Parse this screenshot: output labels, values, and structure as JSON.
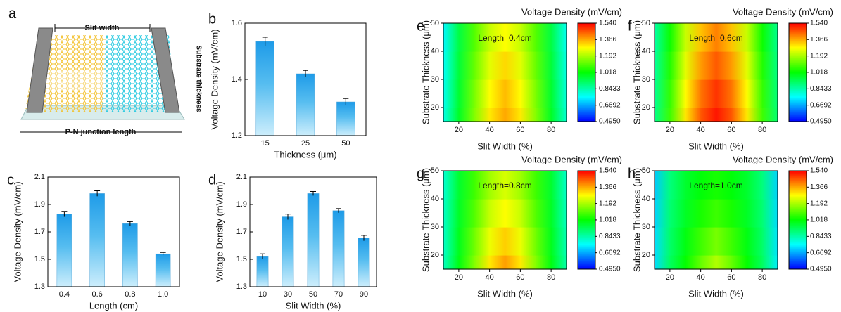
{
  "diagram": {
    "panel": "a",
    "slit_label": "Slit width",
    "thickness_label": "Substrate thickness",
    "length_label": "P-N junction length"
  },
  "chart_data": [
    {
      "type": "bar",
      "panel": "b",
      "xlabel": "Thickness (μm)",
      "ylabel": "Voltage Density (mV/cm)",
      "categories": [
        "15",
        "25",
        "50"
      ],
      "values": [
        1.535,
        1.42,
        1.32
      ],
      "errors": [
        0.015,
        0.012,
        0.012
      ],
      "color": "#1e9be8",
      "ylim": [
        1.2,
        1.6
      ],
      "yticks": [
        1.2,
        1.4,
        1.6
      ]
    },
    {
      "type": "bar",
      "panel": "c",
      "xlabel": "Length (cm)",
      "ylabel": "Voltage Density (mV/cm)",
      "categories": [
        "0.4",
        "0.6",
        "0.8",
        "1.0"
      ],
      "values": [
        1.83,
        1.98,
        1.76,
        1.54
      ],
      "errors": [
        0.02,
        0.02,
        0.015,
        0.01
      ],
      "color": "#1e9be8",
      "ylim": [
        1.3,
        2.1
      ],
      "yticks": [
        1.3,
        1.5,
        1.7,
        1.9,
        2.1
      ]
    },
    {
      "type": "bar",
      "panel": "d",
      "xlabel": "Slit Width (%)",
      "ylabel": "Voltage Density (mV/cm)",
      "categories": [
        "10",
        "30",
        "50",
        "70",
        "90"
      ],
      "values": [
        1.52,
        1.81,
        1.98,
        1.855,
        1.655
      ],
      "errors": [
        0.02,
        0.02,
        0.015,
        0.015,
        0.02
      ],
      "color": "#1e9be8",
      "ylim": [
        1.3,
        2.1
      ],
      "yticks": [
        1.3,
        1.5,
        1.7,
        1.9,
        2.1
      ]
    },
    {
      "type": "contour",
      "panel": "e",
      "annotation": "Length=0.4cm",
      "xlabel": "Slit Width (%)",
      "ylabel": "Substrate Thickness (μm)",
      "colorbar_label": "Voltage Density (mV/cm)",
      "x": [
        10,
        20,
        30,
        40,
        50,
        60,
        70,
        80,
        90
      ],
      "y": [
        15,
        25,
        35,
        45
      ],
      "z": [
        [
          0.78,
          0.98,
          1.15,
          1.3,
          1.37,
          1.3,
          1.15,
          0.98,
          0.8
        ],
        [
          0.77,
          0.97,
          1.14,
          1.28,
          1.35,
          1.28,
          1.14,
          0.97,
          0.79
        ],
        [
          0.76,
          0.96,
          1.12,
          1.25,
          1.32,
          1.25,
          1.12,
          0.96,
          0.78
        ],
        [
          0.75,
          0.95,
          1.1,
          1.22,
          1.28,
          1.22,
          1.1,
          0.95,
          0.77
        ]
      ],
      "xlim": [
        10,
        90
      ],
      "ylim": [
        15,
        50
      ],
      "xticks": [
        20,
        40,
        60,
        80
      ],
      "yticks": [
        20,
        30,
        40,
        50
      ],
      "zlim": [
        0.495,
        1.54
      ],
      "zticks": [
        {
          "value": 0.495,
          "label": "0.4950"
        },
        0.6692,
        0.8433,
        1.018,
        1.192,
        1.366,
        {
          "value": 1.54,
          "label": "1.540"
        }
      ],
      "colormap": [
        "#0000ff",
        "#00ffff",
        "#00ff00",
        "#ffff00",
        "#ff0000"
      ]
    },
    {
      "type": "contour",
      "panel": "f",
      "annotation": "Length=0.6cm",
      "xlabel": "Slit Width (%)",
      "ylabel": "Substrate Thickness (μm)",
      "colorbar_label": "Voltage Density (mV/cm)",
      "x": [
        10,
        20,
        30,
        40,
        50,
        60,
        70,
        80,
        90
      ],
      "y": [
        15,
        25,
        35,
        45
      ],
      "z": [
        [
          0.88,
          1.08,
          1.3,
          1.45,
          1.52,
          1.45,
          1.3,
          1.08,
          0.9
        ],
        [
          0.87,
          1.07,
          1.28,
          1.42,
          1.49,
          1.42,
          1.28,
          1.07,
          0.89
        ],
        [
          0.86,
          1.05,
          1.25,
          1.38,
          1.45,
          1.38,
          1.25,
          1.05,
          0.88
        ],
        [
          0.85,
          1.03,
          1.22,
          1.34,
          1.41,
          1.34,
          1.22,
          1.03,
          0.87
        ]
      ],
      "xlim": [
        10,
        90
      ],
      "ylim": [
        15,
        50
      ],
      "xticks": [
        20,
        40,
        60,
        80
      ],
      "yticks": [
        20,
        30,
        40,
        50
      ],
      "zlim": [
        0.495,
        1.54
      ],
      "zticks": [
        {
          "value": 0.495,
          "label": "0.4950"
        },
        0.6692,
        0.8433,
        1.018,
        1.192,
        1.366,
        {
          "value": 1.54,
          "label": "1.540"
        }
      ],
      "colormap": [
        "#0000ff",
        "#00ffff",
        "#00ff00",
        "#ffff00",
        "#ff0000"
      ]
    },
    {
      "type": "contour",
      "panel": "g",
      "annotation": "Length=0.8cm",
      "xlabel": "Slit Width (%)",
      "ylabel": "Substrate Thickness (μm)",
      "colorbar_label": "Voltage Density (mV/cm)",
      "x": [
        10,
        20,
        30,
        40,
        50,
        60,
        70,
        80,
        90
      ],
      "y": [
        15,
        25,
        35,
        45
      ],
      "z": [
        [
          0.82,
          1.0,
          1.15,
          1.3,
          1.38,
          1.3,
          1.15,
          1.0,
          0.84
        ],
        [
          0.81,
          0.99,
          1.13,
          1.26,
          1.33,
          1.26,
          1.13,
          0.99,
          0.83
        ],
        [
          0.81,
          0.98,
          1.1,
          1.22,
          1.28,
          1.22,
          1.1,
          0.98,
          0.82
        ],
        [
          0.8,
          0.97,
          1.08,
          1.18,
          1.24,
          1.18,
          1.08,
          0.97,
          0.81
        ]
      ],
      "xlim": [
        10,
        90
      ],
      "ylim": [
        15,
        50
      ],
      "xticks": [
        20,
        40,
        60,
        80
      ],
      "yticks": [
        20,
        30,
        40,
        50
      ],
      "zlim": [
        0.495,
        1.54
      ],
      "zticks": [
        {
          "value": 0.495,
          "label": "0.4950"
        },
        0.6692,
        0.8433,
        1.018,
        1.192,
        1.366,
        {
          "value": 1.54,
          "label": "1.540"
        }
      ],
      "colormap": [
        "#0000ff",
        "#00ffff",
        "#00ff00",
        "#ffff00",
        "#ff0000"
      ]
    },
    {
      "type": "contour",
      "panel": "h",
      "annotation": "Length=1.0cm",
      "xlabel": "Slit Width (%)",
      "ylabel": "Substrate Thickness (μm)",
      "colorbar_label": "Voltage Density (mV/cm)",
      "x": [
        10,
        20,
        30,
        40,
        50,
        60,
        70,
        80,
        90
      ],
      "y": [
        15,
        25,
        35,
        45
      ],
      "z": [
        [
          0.72,
          0.92,
          1.02,
          1.12,
          1.2,
          1.12,
          1.02,
          0.92,
          0.74
        ],
        [
          0.72,
          0.91,
          1.0,
          1.08,
          1.14,
          1.08,
          1.0,
          0.91,
          0.73
        ],
        [
          0.71,
          0.9,
          0.98,
          1.04,
          1.08,
          1.04,
          0.98,
          0.9,
          0.72
        ],
        [
          0.7,
          0.89,
          0.97,
          1.01,
          1.04,
          1.01,
          0.97,
          0.89,
          0.71
        ]
      ],
      "xlim": [
        10,
        90
      ],
      "ylim": [
        15,
        50
      ],
      "xticks": [
        20,
        40,
        60,
        80
      ],
      "yticks": [
        20,
        30,
        40,
        50
      ],
      "zlim": [
        0.495,
        1.54
      ],
      "zticks": [
        {
          "value": 0.495,
          "label": "0.4950"
        },
        0.6692,
        0.8433,
        1.018,
        1.192,
        1.366,
        {
          "value": 1.54,
          "label": "1.540"
        }
      ],
      "colormap": [
        "#0000ff",
        "#00ffff",
        "#00ff00",
        "#ffff00",
        "#ff0000"
      ]
    }
  ]
}
